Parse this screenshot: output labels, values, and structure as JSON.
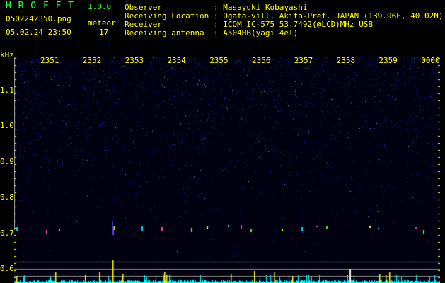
{
  "header": {
    "app_title": "H R O F F T",
    "version": "1.0.0",
    "filename": "0502242350.png",
    "datetime": "05.02.24 23:50",
    "meteor_label": "meteor",
    "meteor_count": "17",
    "info": [
      {
        "label": "Observer",
        "value": ": Masayuki Kobayashi"
      },
      {
        "label": "Receiving Location",
        "value": ": Ogata-vill. Akita-Pref. JAPAN (139.96E, 40.02N)"
      },
      {
        "label": "Receiver",
        "value": ": ICOM IC-575 53.7492(@LCD)MHz USB"
      },
      {
        "label": "Receiving antenna",
        "value": ": A504HB(yagi 4el)"
      }
    ]
  },
  "chart_data": {
    "type": "heatmap",
    "ylabel": "kHz",
    "y_ticks": [
      "1.1",
      "1.0",
      "0.9",
      "0.8",
      "0.7",
      "0.6"
    ],
    "x_ticks": [
      "2351",
      "2352",
      "2353",
      "2354",
      "2355",
      "2356",
      "2357",
      "2358",
      "2359",
      "0000"
    ],
    "colors": {
      "noise": "#2030c0",
      "signal": "#ffff00",
      "baseline": "#00ffff",
      "ref_lines": "#909090"
    }
  }
}
